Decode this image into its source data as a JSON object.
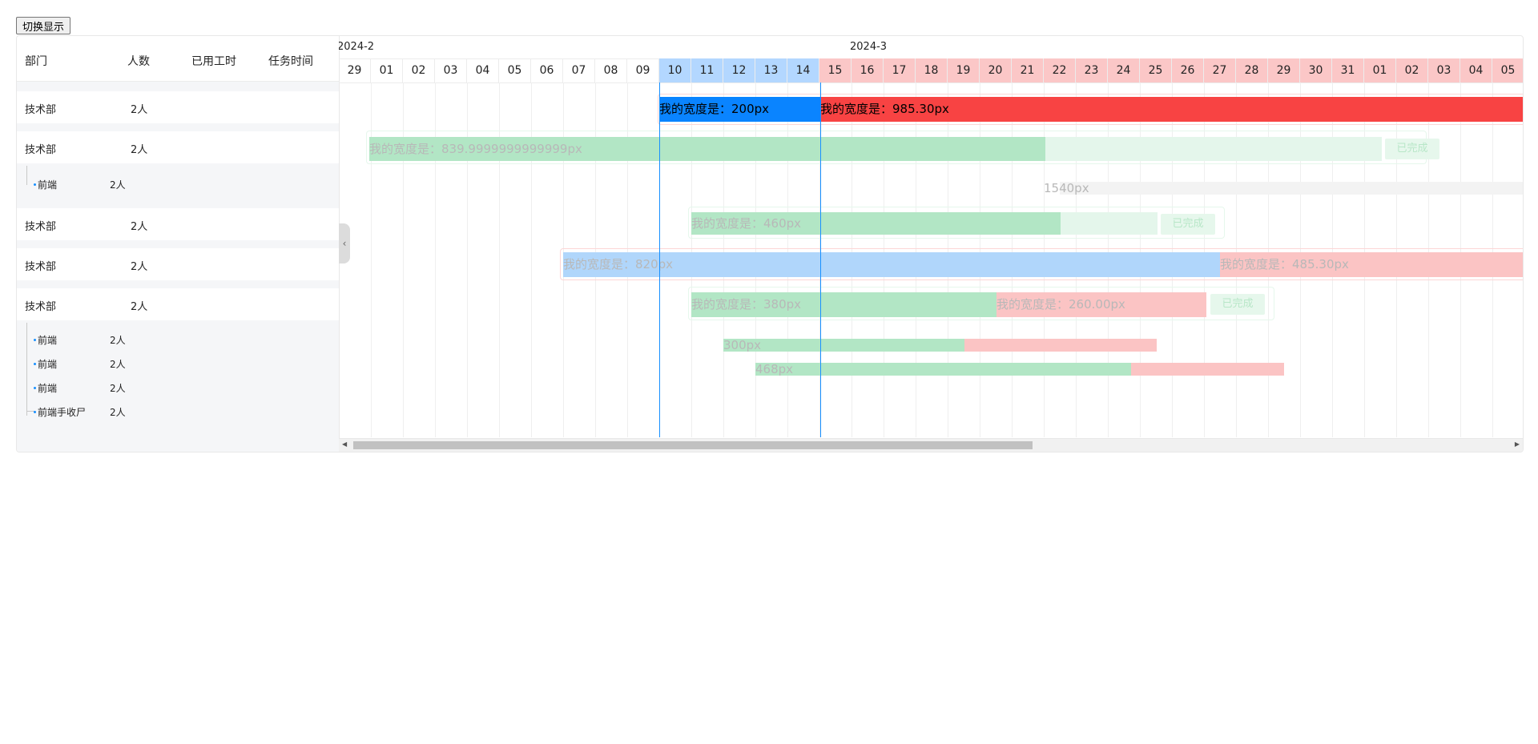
{
  "toggle_button": "切换显示",
  "table": {
    "headers": {
      "dept": "部门",
      "count": "人数",
      "hours": "已用工时",
      "time": "任务时间"
    },
    "rows": [
      {
        "dept": "技术部",
        "count": "2人"
      },
      {
        "dept": "技术部",
        "count": "2人"
      },
      {
        "dept": "前端",
        "count": "2人"
      },
      {
        "dept": "技术部",
        "count": "2人"
      },
      {
        "dept": "技术部",
        "count": "2人"
      },
      {
        "dept": "技术部",
        "count": "2人"
      },
      {
        "dept": "前端",
        "count": "2人"
      },
      {
        "dept": "前端",
        "count": "2人"
      },
      {
        "dept": "前端",
        "count": "2人"
      },
      {
        "dept": "前端手收尸",
        "count": "2人"
      }
    ]
  },
  "timeline": {
    "months": [
      "2024-2",
      "2024-3"
    ],
    "days": [
      "29",
      "01",
      "02",
      "03",
      "04",
      "05",
      "06",
      "07",
      "08",
      "09",
      "10",
      "11",
      "12",
      "13",
      "14",
      "15",
      "16",
      "17",
      "18",
      "19",
      "20",
      "21",
      "22",
      "23",
      "24",
      "25",
      "26",
      "27",
      "28",
      "29",
      "30",
      "31",
      "01",
      "02",
      "03",
      "04",
      "05"
    ]
  },
  "bars": {
    "b1a": "我的宽度是：200px",
    "b1b": "我的宽度是：985.30px",
    "b2": "我的宽度是：839.9999999999999px",
    "b2_done": "已完成",
    "b3": "1540px",
    "b4": "我的宽度是：460px",
    "b4_done": "已完成",
    "b5a": "我的宽度是：820px",
    "b5b": "我的宽度是：485.30px",
    "b6a": "我的宽度是：380px",
    "b6b": "我的宽度是：260.00px",
    "b6_done": "已完成",
    "b7": "300px",
    "b8": "468px"
  },
  "colors": {
    "accent": "#1890ff",
    "green": "#b2e6c5",
    "red": "#f84343",
    "pink": "#fbc4c4",
    "blue_light": "#b0d6fb"
  }
}
